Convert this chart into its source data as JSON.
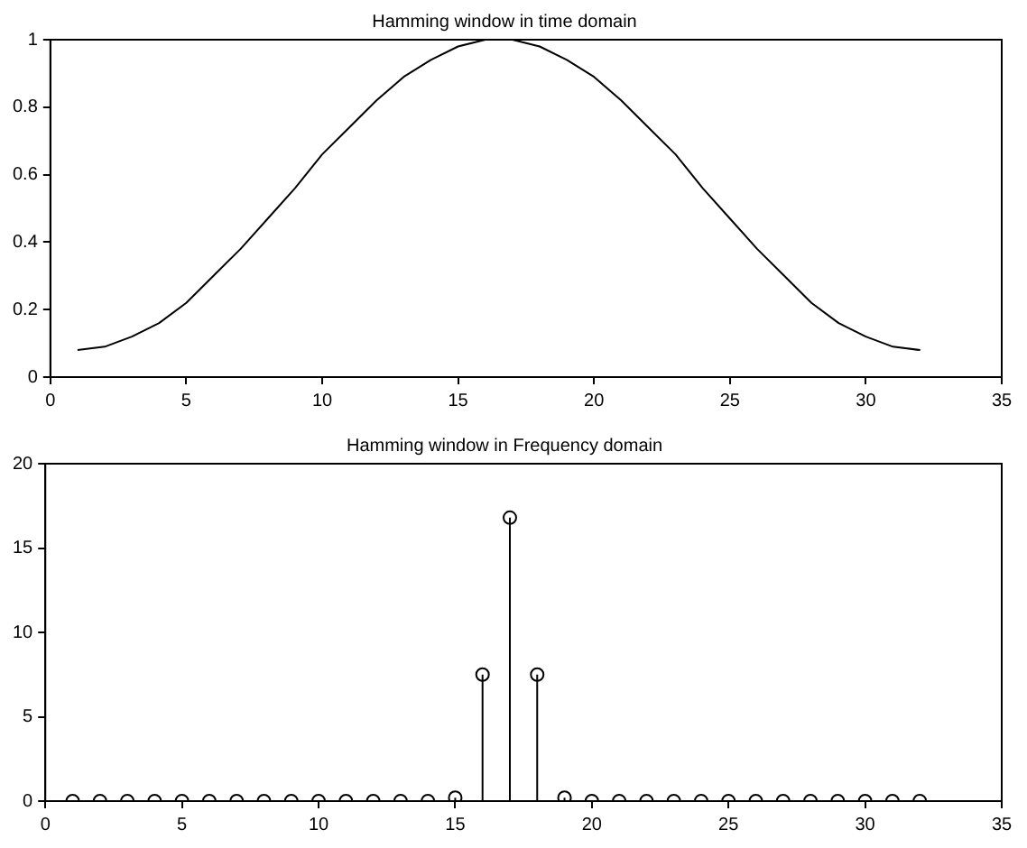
{
  "chart_data": [
    {
      "type": "line",
      "title": "Hamming window in time domain",
      "x": [
        1,
        2,
        3,
        4,
        5,
        6,
        7,
        8,
        9,
        10,
        11,
        12,
        13,
        14,
        15,
        16,
        17,
        18,
        19,
        20,
        21,
        22,
        23,
        24,
        25,
        26,
        27,
        28,
        29,
        30,
        31,
        32
      ],
      "series": [
        {
          "color": "#000000",
          "values": [
            0.08,
            0.09,
            0.12,
            0.16,
            0.22,
            0.3,
            0.38,
            0.47,
            0.56,
            0.66,
            0.74,
            0.82,
            0.89,
            0.94,
            0.98,
            1.0,
            1.0,
            0.98,
            0.94,
            0.89,
            0.82,
            0.74,
            0.66,
            0.56,
            0.47,
            0.38,
            0.3,
            0.22,
            0.16,
            0.12,
            0.09,
            0.08
          ]
        }
      ],
      "xlim": [
        0,
        35
      ],
      "xticks": [
        0,
        5,
        10,
        15,
        20,
        25,
        30,
        35
      ],
      "ylim": [
        0,
        1
      ],
      "yticks": [
        0,
        0.2,
        0.4,
        0.6,
        0.8,
        1
      ],
      "legend": false,
      "marker": "none",
      "line_style": "solid"
    },
    {
      "type": "lollipop",
      "title": "Hamming window in Frequency domain",
      "x": [
        1,
        2,
        3,
        4,
        5,
        6,
        7,
        8,
        9,
        10,
        11,
        12,
        13,
        14,
        15,
        16,
        17,
        18,
        19,
        20,
        21,
        22,
        23,
        24,
        25,
        26,
        27,
        28,
        29,
        30,
        31,
        32
      ],
      "series": [
        {
          "color": "#000000",
          "values": [
            0,
            0,
            0,
            0,
            0,
            0,
            0,
            0,
            0,
            0,
            0,
            0,
            0,
            0,
            0.2,
            7.5,
            16.8,
            7.5,
            0.2,
            0,
            0,
            0,
            0,
            0,
            0,
            0,
            0,
            0,
            0,
            0,
            0,
            0
          ]
        }
      ],
      "xlim": [
        0,
        35
      ],
      "xticks": [
        0,
        5,
        10,
        15,
        20,
        25,
        30,
        35
      ],
      "ylim": [
        0,
        20
      ],
      "yticks": [
        0,
        5,
        10,
        15,
        20
      ],
      "legend": false,
      "marker": "circle"
    }
  ]
}
